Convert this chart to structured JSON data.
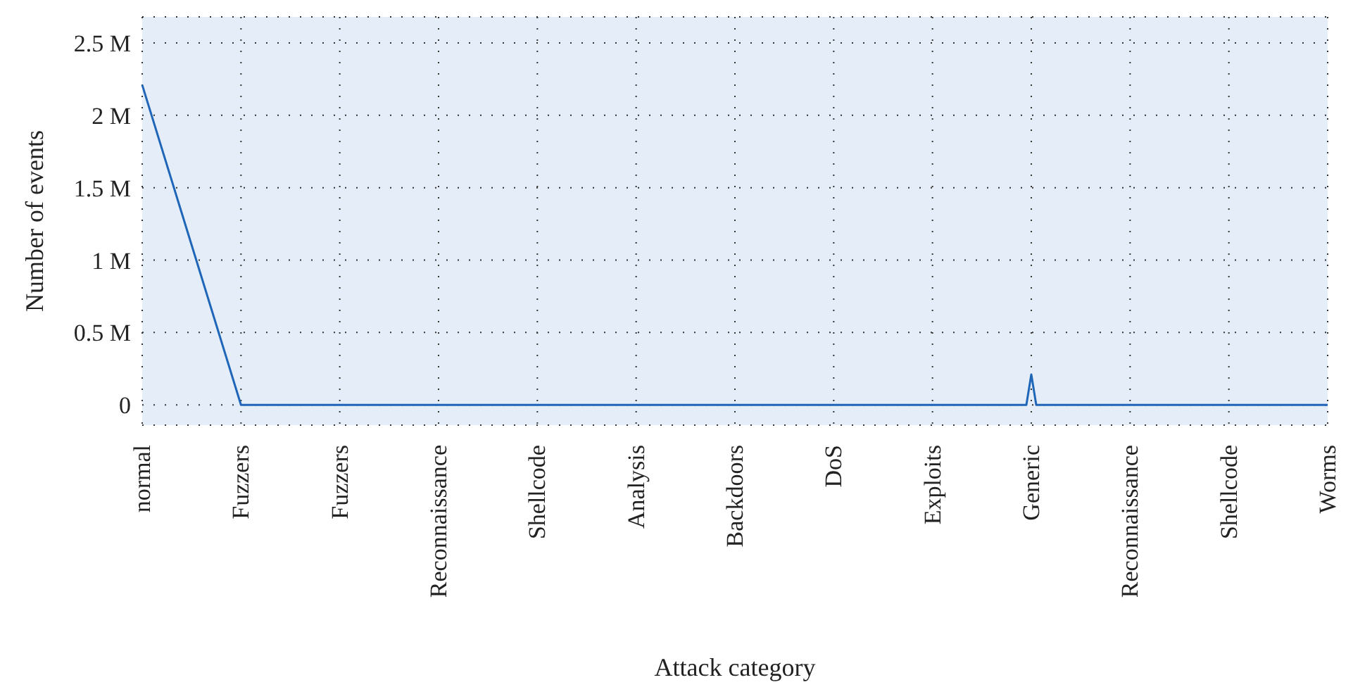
{
  "chart_data": {
    "type": "line",
    "xlabel": "Attack category",
    "ylabel": "Number of events",
    "categories": [
      "normal",
      null,
      null,
      null,
      null,
      null,
      null,
      null,
      null,
      null,
      null,
      null,
      null,
      null,
      null,
      null,
      null,
      null,
      null,
      null,
      "Fuzzers",
      null,
      null,
      null,
      null,
      null,
      null,
      null,
      null,
      null,
      null,
      null,
      null,
      null,
      null,
      null,
      null,
      null,
      null,
      null,
      "Fuzzers",
      null,
      null,
      null,
      null,
      null,
      null,
      null,
      null,
      null,
      null,
      null,
      null,
      null,
      null,
      null,
      null,
      null,
      null,
      null,
      "Reconnaissance",
      null,
      null,
      null,
      null,
      null,
      null,
      null,
      null,
      null,
      null,
      null,
      null,
      null,
      null,
      null,
      null,
      null,
      null,
      null,
      "Shellcode",
      null,
      null,
      null,
      null,
      null,
      null,
      null,
      null,
      null,
      null,
      null,
      null,
      null,
      null,
      null,
      null,
      null,
      null,
      null,
      "Analysis",
      null,
      null,
      null,
      null,
      null,
      null,
      null,
      null,
      null,
      null,
      null,
      null,
      null,
      null,
      null,
      null,
      null,
      null,
      null,
      "Backdoors",
      null,
      null,
      null,
      null,
      null,
      null,
      null,
      null,
      null,
      null,
      null,
      null,
      null,
      null,
      null,
      null,
      null,
      null,
      null,
      "DoS",
      null,
      null,
      null,
      null,
      null,
      null,
      null,
      null,
      null,
      null,
      null,
      null,
      null,
      null,
      null,
      null,
      null,
      null,
      null,
      "Exploits",
      null,
      null,
      null,
      null,
      null,
      null,
      null,
      null,
      null,
      null,
      null,
      null,
      null,
      null,
      null,
      null,
      null,
      null,
      null,
      "Generic",
      null,
      null,
      null,
      null,
      null,
      null,
      null,
      null,
      null,
      null,
      null,
      null,
      null,
      null,
      null,
      null,
      null,
      null,
      null,
      "Reconnaissance",
      null,
      null,
      null,
      null,
      null,
      null,
      null,
      null,
      null,
      null,
      null,
      null,
      null,
      null,
      null,
      null,
      null,
      null,
      null,
      "Shellcode",
      null,
      null,
      null,
      null,
      null,
      null,
      null,
      null,
      null,
      null,
      null,
      null,
      null,
      null,
      null,
      null,
      null,
      null,
      null,
      "Worms"
    ],
    "series": [
      {
        "color": "#1f66b8",
        "values": [
          2210000,
          null,
          null,
          null,
          null,
          null,
          null,
          null,
          null,
          null,
          null,
          null,
          null,
          null,
          null,
          null,
          null,
          null,
          null,
          null,
          0,
          null,
          null,
          null,
          null,
          null,
          null,
          null,
          null,
          null,
          null,
          null,
          null,
          null,
          null,
          null,
          null,
          null,
          null,
          null,
          null,
          null,
          null,
          null,
          null,
          null,
          null,
          null,
          null,
          null,
          null,
          null,
          null,
          null,
          null,
          null,
          null,
          null,
          null,
          null,
          null,
          null,
          null,
          null,
          null,
          null,
          null,
          null,
          null,
          null,
          null,
          null,
          null,
          null,
          null,
          null,
          null,
          null,
          null,
          null,
          null,
          null,
          null,
          null,
          null,
          null,
          null,
          null,
          null,
          null,
          null,
          null,
          null,
          null,
          null,
          null,
          null,
          null,
          null,
          null,
          null,
          null,
          null,
          null,
          null,
          null,
          null,
          null,
          null,
          null,
          null,
          null,
          null,
          null,
          null,
          null,
          null,
          null,
          null,
          null,
          null,
          null,
          null,
          null,
          null,
          null,
          null,
          null,
          null,
          null,
          null,
          null,
          null,
          null,
          null,
          null,
          null,
          null,
          null,
          null,
          null,
          null,
          null,
          null,
          null,
          null,
          null,
          null,
          null,
          null,
          null,
          null,
          null,
          null,
          null,
          null,
          null,
          null,
          null,
          null,
          null,
          null,
          null,
          null,
          null,
          null,
          null,
          null,
          null,
          null,
          null,
          null,
          null,
          null,
          null,
          null,
          null,
          null,
          null,
          0,
          210000,
          0,
          null,
          null,
          null,
          null,
          null,
          null,
          null,
          null,
          null,
          null,
          null,
          null,
          null,
          null,
          null,
          null,
          null,
          null,
          null,
          null,
          null,
          null,
          null,
          null,
          null,
          null,
          null,
          null,
          null,
          null,
          null,
          null,
          null,
          null,
          null,
          null,
          null,
          null,
          null,
          null,
          null,
          null,
          null,
          null,
          null,
          null,
          null,
          null,
          null,
          null,
          null,
          null,
          null,
          null,
          null,
          null,
          null,
          null,
          0
        ]
      }
    ],
    "ylim": [
      -140000,
      2680000
    ],
    "yticks": [
      {
        "value": 0,
        "label": "0"
      },
      {
        "value": 500000,
        "label": "0.5 M"
      },
      {
        "value": 1000000,
        "label": "1 M"
      },
      {
        "value": 1500000,
        "label": "1.5 M"
      },
      {
        "value": 2000000,
        "label": "2 M"
      },
      {
        "value": 2500000,
        "label": "2.5 M"
      }
    ],
    "grid": true,
    "marker": "none",
    "line_style": "solid"
  }
}
